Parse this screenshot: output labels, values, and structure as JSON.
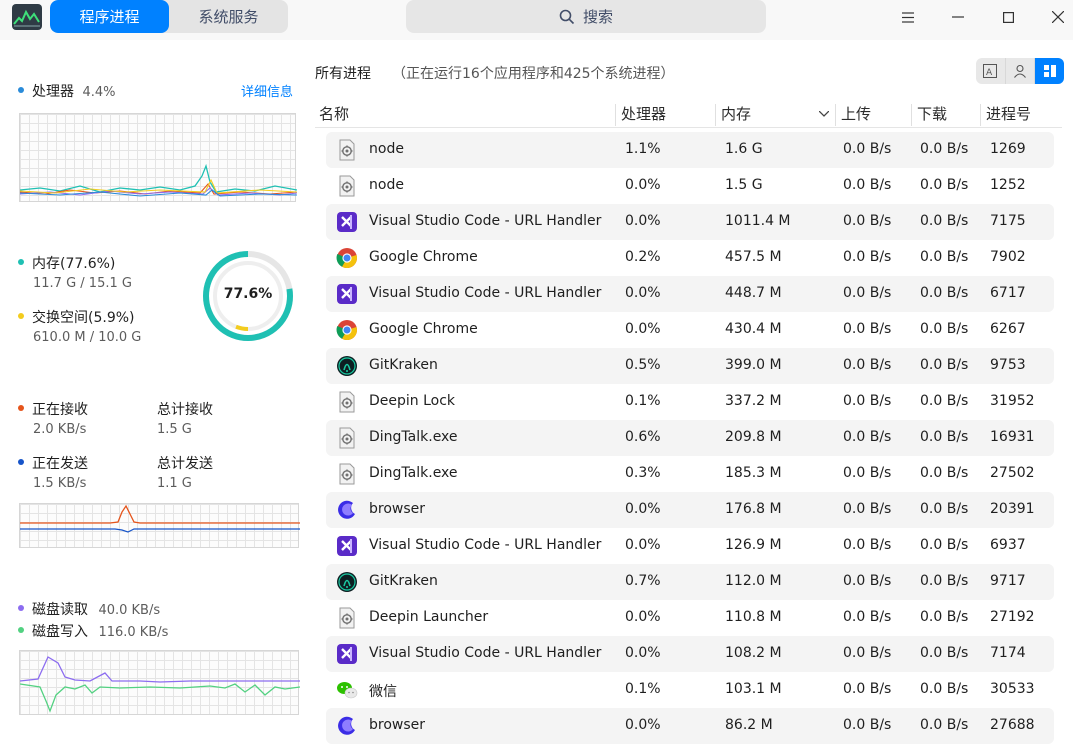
{
  "tabs": [
    "程序进程",
    "系统服务"
  ],
  "search": {
    "label": "搜索"
  },
  "cpu": {
    "label": "处理器",
    "value": "4.4%",
    "detail": "详细信息"
  },
  "memory": {
    "label": "内存(77.6%)",
    "value": "11.7 G / 15.1 G",
    "swap_label": "交换空间(5.9%)",
    "swap_value": "610.0 M / 10.0 G",
    "ring_text": "77.6%",
    "ring_fraction": 0.776,
    "swap_fraction": 0.059
  },
  "network": {
    "recv_label": "正在接收",
    "recv_value": "2.0 KB/s",
    "total_recv_label": "总计接收",
    "total_recv_value": "1.5 G",
    "send_label": "正在发送",
    "send_value": "1.5 KB/s",
    "total_send_label": "总计发送",
    "total_send_value": "1.1 G"
  },
  "disk": {
    "read_label": "磁盘读取",
    "read_value": "40.0 KB/s",
    "write_label": "磁盘写入",
    "write_value": "116.0 KB/s"
  },
  "colors": {
    "accent": "#0081ff",
    "cpu": "#2a8bd9",
    "mem": "#1fc0b3",
    "swap": "#f3cc1e",
    "recv": "#e5541b",
    "send": "#1654c9",
    "read": "#8c6cf0",
    "write": "#52d181"
  },
  "process_header": {
    "title": "所有进程",
    "subtitle": "（正在运行16个应用程序和425个系统进程）"
  },
  "columns": [
    "名称",
    "处理器",
    "内存",
    "上传",
    "下载",
    "进程号"
  ],
  "processes": [
    {
      "icon": "generic-app-icon",
      "name": "node",
      "cpu": "1.1%",
      "mem": "1.6 G",
      "up": "0.0 B/s",
      "down": "0.0 B/s",
      "pid": "1269"
    },
    {
      "icon": "generic-app-icon",
      "name": "node",
      "cpu": "0.0%",
      "mem": "1.5 G",
      "up": "0.0 B/s",
      "down": "0.0 B/s",
      "pid": "1252"
    },
    {
      "icon": "vscode-icon",
      "name": "Visual Studio Code - URL Handler",
      "cpu": "0.0%",
      "mem": "1011.4 M",
      "up": "0.0 B/s",
      "down": "0.0 B/s",
      "pid": "7175"
    },
    {
      "icon": "chrome-icon",
      "name": "Google Chrome",
      "cpu": "0.2%",
      "mem": "457.5 M",
      "up": "0.0 B/s",
      "down": "0.0 B/s",
      "pid": "7902"
    },
    {
      "icon": "vscode-icon",
      "name": "Visual Studio Code - URL Handler",
      "cpu": "0.0%",
      "mem": "448.7 M",
      "up": "0.0 B/s",
      "down": "0.0 B/s",
      "pid": "6717"
    },
    {
      "icon": "chrome-icon",
      "name": "Google Chrome",
      "cpu": "0.0%",
      "mem": "430.4 M",
      "up": "0.0 B/s",
      "down": "0.0 B/s",
      "pid": "6267"
    },
    {
      "icon": "gitkraken-icon",
      "name": "GitKraken",
      "cpu": "0.5%",
      "mem": "399.0 M",
      "up": "0.0 B/s",
      "down": "0.0 B/s",
      "pid": "9753"
    },
    {
      "icon": "generic-app-icon",
      "name": "Deepin Lock",
      "cpu": "0.1%",
      "mem": "337.2 M",
      "up": "0.0 B/s",
      "down": "0.0 B/s",
      "pid": "31952"
    },
    {
      "icon": "generic-app-icon",
      "name": "DingTalk.exe",
      "cpu": "0.6%",
      "mem": "209.8 M",
      "up": "0.0 B/s",
      "down": "0.0 B/s",
      "pid": "16931"
    },
    {
      "icon": "generic-app-icon",
      "name": "DingTalk.exe",
      "cpu": "0.3%",
      "mem": "185.3 M",
      "up": "0.0 B/s",
      "down": "0.0 B/s",
      "pid": "27502"
    },
    {
      "icon": "browser-icon",
      "name": "browser",
      "cpu": "0.0%",
      "mem": "176.8 M",
      "up": "0.0 B/s",
      "down": "0.0 B/s",
      "pid": "20391"
    },
    {
      "icon": "vscode-icon",
      "name": "Visual Studio Code - URL Handler",
      "cpu": "0.0%",
      "mem": "126.9 M",
      "up": "0.0 B/s",
      "down": "0.0 B/s",
      "pid": "6937"
    },
    {
      "icon": "gitkraken-icon",
      "name": "GitKraken",
      "cpu": "0.7%",
      "mem": "112.0 M",
      "up": "0.0 B/s",
      "down": "0.0 B/s",
      "pid": "9717"
    },
    {
      "icon": "generic-app-icon",
      "name": "Deepin Launcher",
      "cpu": "0.0%",
      "mem": "110.8 M",
      "up": "0.0 B/s",
      "down": "0.0 B/s",
      "pid": "27192"
    },
    {
      "icon": "vscode-icon",
      "name": "Visual Studio Code - URL Handler",
      "cpu": "0.0%",
      "mem": "108.2 M",
      "up": "0.0 B/s",
      "down": "0.0 B/s",
      "pid": "7174"
    },
    {
      "icon": "wechat-icon",
      "name": "微信",
      "cpu": "0.1%",
      "mem": "103.1 M",
      "up": "0.0 B/s",
      "down": "0.0 B/s",
      "pid": "30533"
    },
    {
      "icon": "browser-icon",
      "name": "browser",
      "cpu": "0.0%",
      "mem": "86.2 M",
      "up": "0.0 B/s",
      "down": "0.0 B/s",
      "pid": "27688"
    }
  ]
}
